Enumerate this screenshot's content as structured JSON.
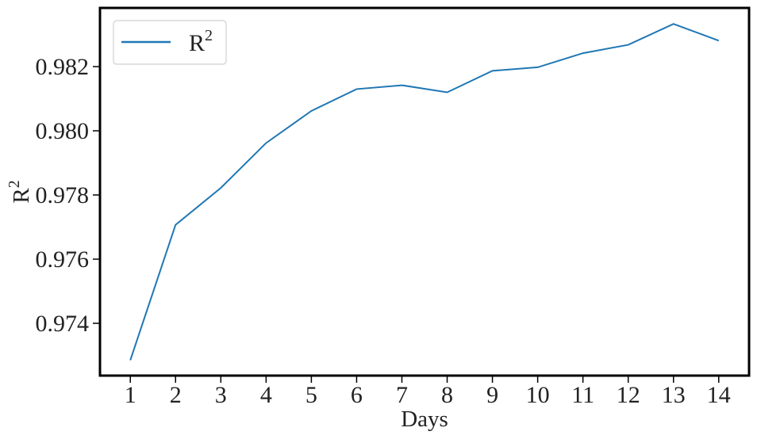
{
  "chart_data": {
    "type": "line",
    "title": "",
    "xlabel": "Days",
    "ylabel": {
      "base": "R",
      "sup": "2"
    },
    "x": [
      1,
      2,
      3,
      4,
      5,
      6,
      7,
      8,
      9,
      10,
      11,
      12,
      13,
      14
    ],
    "series": [
      {
        "name": {
          "base": "R",
          "sup": "2"
        },
        "color": "#1f77b4",
        "values": [
          0.97285,
          0.97707,
          0.97822,
          0.97962,
          0.98062,
          0.9813,
          0.98142,
          0.9812,
          0.98187,
          0.98198,
          0.98242,
          0.98268,
          0.98333,
          0.98281
        ]
      }
    ],
    "xticks": [
      "1",
      "2",
      "3",
      "4",
      "5",
      "6",
      "7",
      "8",
      "9",
      "10",
      "11",
      "12",
      "13",
      "14"
    ],
    "yticks": [
      "0.974",
      "0.976",
      "0.978",
      "0.980",
      "0.982"
    ],
    "ytick_values": [
      0.974,
      0.976,
      0.978,
      0.98,
      0.982
    ],
    "xlim": [
      0.33,
      14.67
    ],
    "ylim": [
      0.97237,
      0.98383
    ],
    "grid": false,
    "legend": "top-left"
  }
}
